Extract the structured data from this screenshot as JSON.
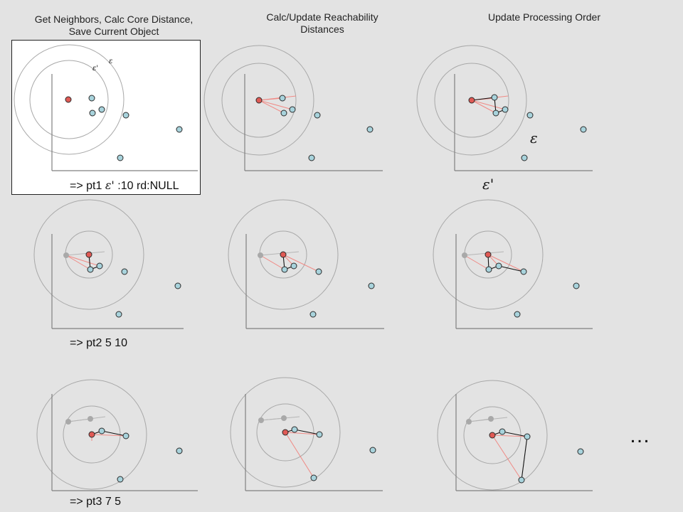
{
  "columns": [
    {
      "title_line1": "Get Neighbors, Calc Core Distance,",
      "title_line2": "Save Current Object"
    },
    {
      "title_line1": "Calc/Update Reachability",
      "title_line2": "Distances"
    },
    {
      "title_line1": "Update Processing Order",
      "title_line2": ""
    }
  ],
  "rows": [
    {
      "label_prefix": "=> pt1 ",
      "label_symbol": "ε'",
      "label_suffix": " :10 rd:NULL"
    },
    {
      "label_prefix": "=> pt2 5 10",
      "label_symbol": "",
      "label_suffix": ""
    },
    {
      "label_prefix": "=> pt3 7 5",
      "label_symbol": "",
      "label_suffix": ""
    }
  ],
  "legend": {
    "epsilon": "ε",
    "epsilon_prime": "ε'"
  },
  "inner_panel_labels": {
    "epsilon": "ε",
    "epsilon_prime": "ε'"
  },
  "continuation": "…",
  "colors": {
    "background": "#e3e3e3",
    "current_point": "#e05a55",
    "neighbor_point": "#a8d3dc",
    "processed_point": "#a9a9a9",
    "reach_line": "#f08a85",
    "order_line": "#111111",
    "circle": "#a8a8a8",
    "axis": "#808080"
  }
}
